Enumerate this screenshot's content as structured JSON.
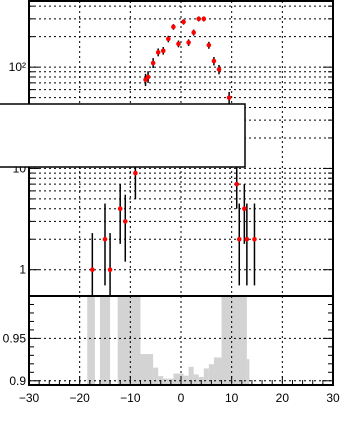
{
  "chart_data": [
    {
      "type": "scatter",
      "panel": "upper",
      "title": "",
      "xlabel": "",
      "ylabel": "",
      "yscale": "log",
      "xlim": [
        -30,
        30
      ],
      "ylim": [
        0.55,
        450
      ],
      "grid": true,
      "legend": "overlay box, left side",
      "y_ticks": [
        {
          "value": 1,
          "label": "1"
        },
        {
          "value": 10,
          "label": "10"
        },
        {
          "value": 100,
          "label": "10²"
        }
      ],
      "marker_color": "#ff0000",
      "errorbar_color": "#000000",
      "series": [
        {
          "points": [
            {
              "x": -17.5,
              "y": 1.0,
              "lo": 0.55,
              "hi": 2.3
            },
            {
              "x": -15.0,
              "y": 2.0,
              "lo": 0.7,
              "hi": 4.5
            },
            {
              "x": -14.0,
              "y": 1.0,
              "lo": 0.55,
              "hi": 2.3
            },
            {
              "x": -12.0,
              "y": 4.0,
              "lo": 1.8,
              "hi": 7.0
            },
            {
              "x": -11.0,
              "y": 3.0,
              "lo": 1.2,
              "hi": 5.5
            },
            {
              "x": -9.0,
              "y": 9.0,
              "lo": 5.0,
              "hi": 14.0
            },
            {
              "x": -7.0,
              "y": 75.0,
              "lo": 65.0,
              "hi": 86.0
            },
            {
              "x": -6.5,
              "y": 80.0,
              "lo": 70.0,
              "hi": 91.0
            },
            {
              "x": -5.5,
              "y": 110.0,
              "lo": 98.0,
              "hi": 123.0
            },
            {
              "x": -4.5,
              "y": 140.0,
              "lo": 128.0,
              "hi": 153.0
            },
            {
              "x": -3.5,
              "y": 145.0,
              "lo": 133.0,
              "hi": 158.0
            },
            {
              "x": -2.5,
              "y": 190.0,
              "lo": 176.0,
              "hi": 204.0
            },
            {
              "x": -1.5,
              "y": 250.0,
              "lo": 234.0,
              "hi": 266.0
            },
            {
              "x": -0.5,
              "y": 170.0,
              "lo": 157.0,
              "hi": 183.0
            },
            {
              "x": 0.5,
              "y": 280.0,
              "lo": 263.0,
              "hi": 297.0
            },
            {
              "x": 1.5,
              "y": 175.0,
              "lo": 162.0,
              "hi": 188.0
            },
            {
              "x": 2.5,
              "y": 220.0,
              "lo": 205.0,
              "hi": 235.0
            },
            {
              "x": 3.5,
              "y": 300.0,
              "lo": 283.0,
              "hi": 317.0
            },
            {
              "x": 4.5,
              "y": 300.0,
              "lo": 283.0,
              "hi": 317.0
            },
            {
              "x": 5.5,
              "y": 165.0,
              "lo": 152.0,
              "hi": 178.0
            },
            {
              "x": 6.5,
              "y": 115.0,
              "lo": 104.0,
              "hi": 126.0
            },
            {
              "x": 7.5,
              "y": 95.0,
              "lo": 85.0,
              "hi": 105.0
            },
            {
              "x": 9.5,
              "y": 50.0,
              "lo": 43.0,
              "hi": 57.0
            },
            {
              "x": 11.0,
              "y": 7.0,
              "lo": 4.0,
              "hi": 11.0
            },
            {
              "x": 11.5,
              "y": 2.0,
              "lo": 0.7,
              "hi": 4.5
            },
            {
              "x": 12.5,
              "y": 4.0,
              "lo": 1.8,
              "hi": 7.0
            },
            {
              "x": 13.0,
              "y": 2.0,
              "lo": 0.7,
              "hi": 4.5
            },
            {
              "x": 14.5,
              "y": 2.0,
              "lo": 0.7,
              "hi": 4.5
            }
          ]
        }
      ]
    },
    {
      "type": "bar",
      "panel": "lower",
      "title": "",
      "xlabel": "",
      "ylabel": "",
      "xlim": [
        -30,
        30
      ],
      "ylim": [
        0.895,
        1.0
      ],
      "grid": true,
      "x_ticks": [
        {
          "value": -30,
          "label": "−30"
        },
        {
          "value": -20,
          "label": "−20"
        },
        {
          "value": -10,
          "label": "−10"
        },
        {
          "value": 0,
          "label": "0"
        },
        {
          "value": 10,
          "label": "10"
        },
        {
          "value": 20,
          "label": "20"
        },
        {
          "value": 30,
          "label": "30"
        }
      ],
      "y_ticks": [
        {
          "value": 0.9,
          "label": "0.9"
        },
        {
          "value": 0.95,
          "label": "0.95"
        }
      ],
      "fill_color": "#d3d3d3",
      "bars": [
        {
          "x0": -18.5,
          "x1": -17.0,
          "y": 1.0
        },
        {
          "x0": -16.0,
          "x1": -14.0,
          "y": 1.0
        },
        {
          "x0": -12.5,
          "x1": -8.0,
          "y": 1.0
        },
        {
          "x0": -8.0,
          "x1": -5.5,
          "y": 0.9315
        },
        {
          "x0": -5.5,
          "x1": -4.5,
          "y": 0.9155
        },
        {
          "x0": -4.5,
          "x1": -3.5,
          "y": 0.9055
        },
        {
          "x0": -3.5,
          "x1": -2.5,
          "y": 0.9025
        },
        {
          "x0": -2.5,
          "x1": -1.5,
          "y": 0.9025
        },
        {
          "x0": -1.5,
          "x1": -0.5,
          "y": 0.9085
        },
        {
          "x0": -0.5,
          "x1": 0.5,
          "y": 0.9085
        },
        {
          "x0": 0.5,
          "x1": 1.5,
          "y": 0.906
        },
        {
          "x0": 1.5,
          "x1": 2.5,
          "y": 0.9165
        },
        {
          "x0": 2.5,
          "x1": 3.5,
          "y": 0.9075
        },
        {
          "x0": 3.5,
          "x1": 4.5,
          "y": 0.9045
        },
        {
          "x0": 4.5,
          "x1": 5.5,
          "y": 0.9145
        },
        {
          "x0": 5.5,
          "x1": 6.5,
          "y": 0.9195
        },
        {
          "x0": 6.5,
          "x1": 8.0,
          "y": 0.9275
        },
        {
          "x0": 8.0,
          "x1": 13.0,
          "y": 1.0
        },
        {
          "x0": 13.0,
          "x1": 13.5,
          "y": 0.9255
        }
      ]
    }
  ]
}
